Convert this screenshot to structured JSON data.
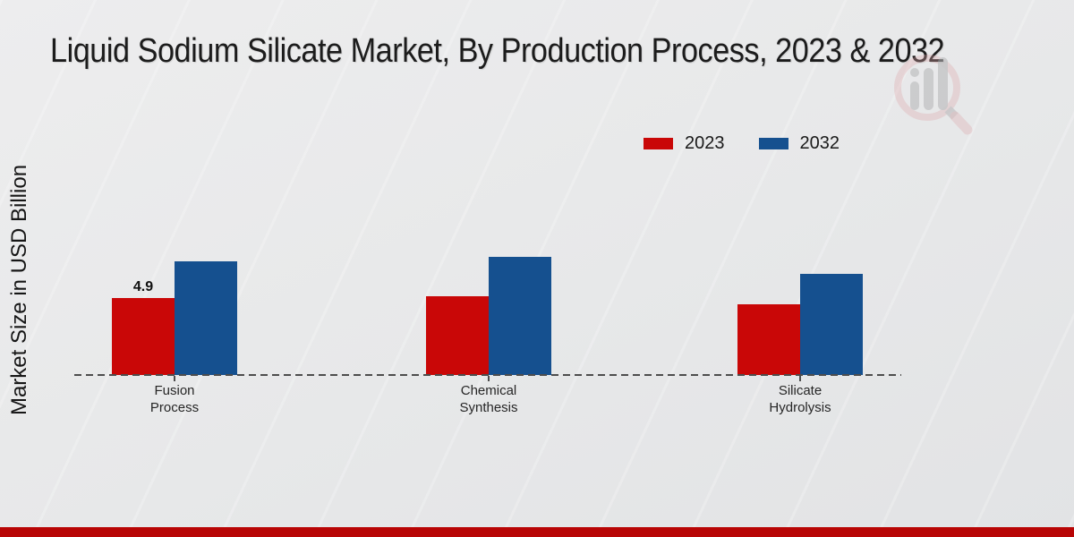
{
  "title": "Liquid Sodium Silicate Market, By Production Process, 2023 & 2032",
  "watermark_icon": "magnifier-bar-chart-logo",
  "footer": {
    "color": "#b80505"
  },
  "colors": {
    "background": "#e9eaeb",
    "axis_line": "#4d4d4d",
    "text_dark": "#1a1a1a"
  },
  "legend": {
    "position": "top-right",
    "items": [
      {
        "label": "2023",
        "color": "#c90707"
      },
      {
        "label": "2032",
        "color": "#15508f"
      }
    ]
  },
  "chart_data": {
    "type": "bar",
    "title": "Liquid Sodium Silicate Market, By Production Process, 2023 & 2032",
    "categories": [
      "Fusion Process",
      "Chemical Synthesis",
      "Silicate Hydrolysis"
    ],
    "series": [
      {
        "name": "2023",
        "color": "#c90707",
        "values": [
          4.9,
          5.0,
          4.5
        ]
      },
      {
        "name": "2032",
        "color": "#15508f",
        "values": [
          7.2,
          7.5,
          6.4
        ]
      }
    ],
    "data_labels": [
      {
        "series": "2023",
        "category": "Fusion Process",
        "text": "4.9"
      }
    ],
    "xlabel": "",
    "ylabel": "Market Size in USD Billion",
    "ylim": [
      0,
      8.5
    ],
    "grid": false,
    "baseline_style": "dashed",
    "legend_position": "top-right"
  }
}
